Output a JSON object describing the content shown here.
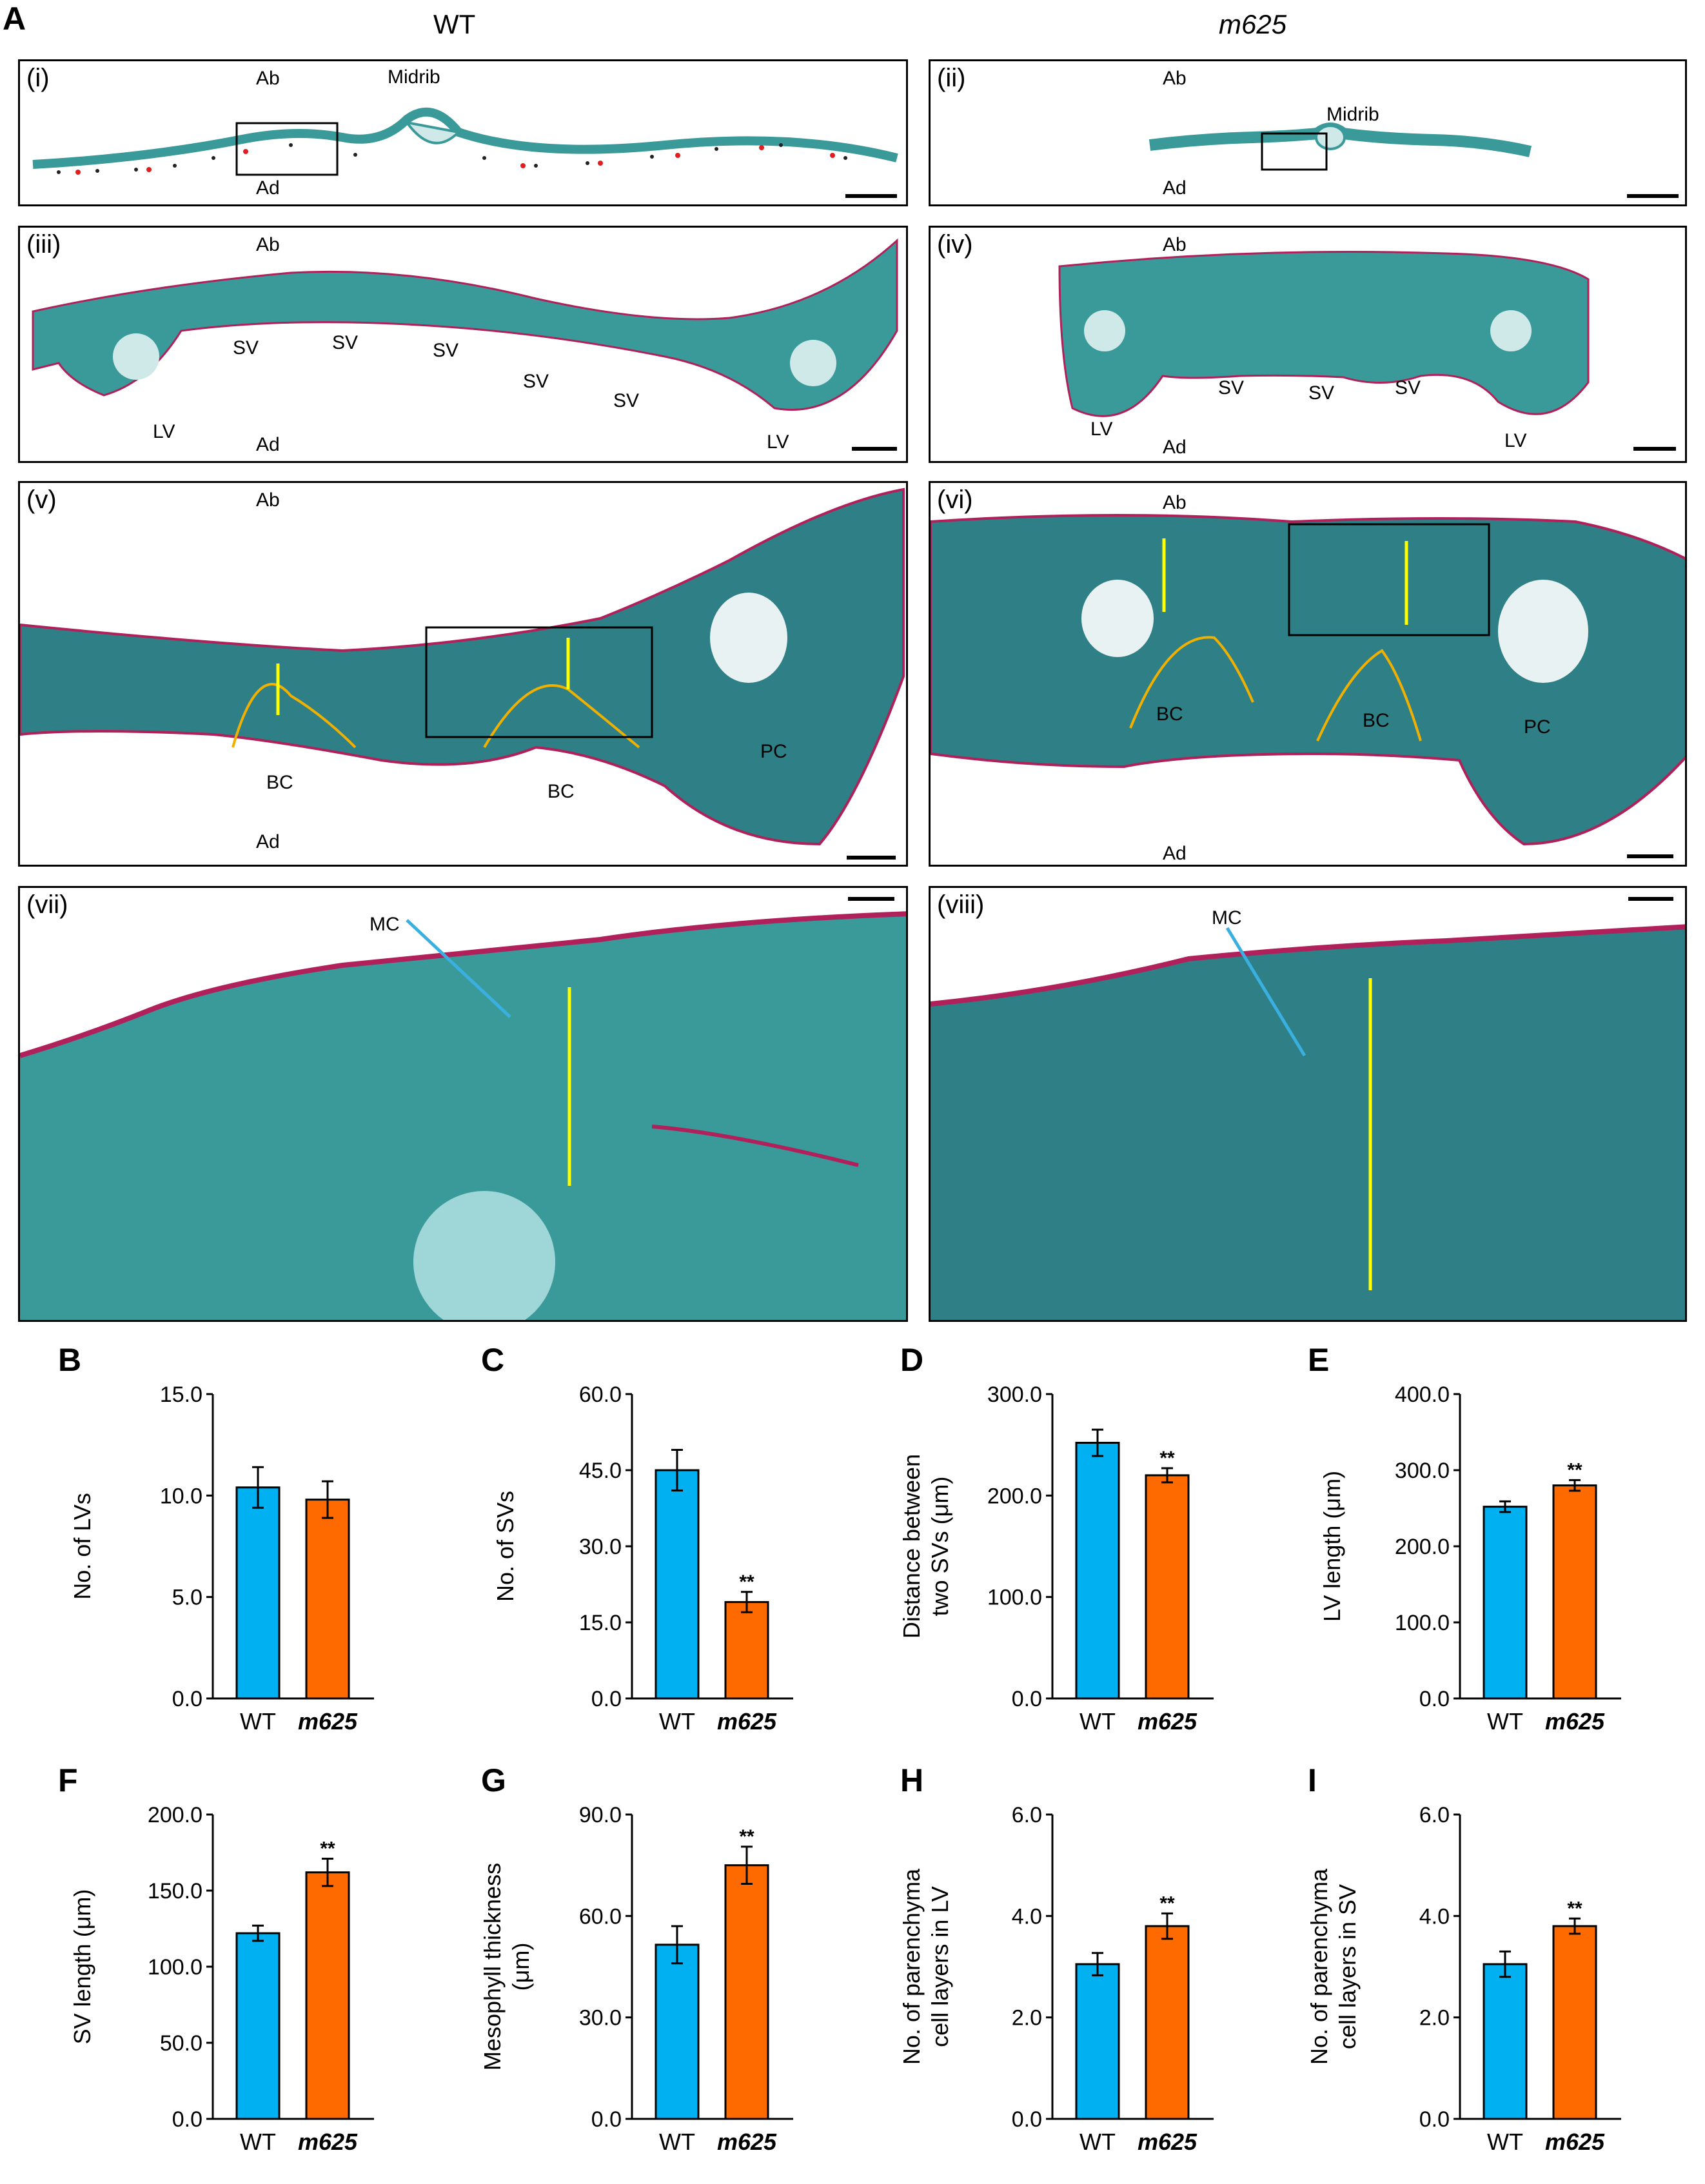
{
  "panel_A": {
    "letter": "A",
    "columns": {
      "left": "WT",
      "right": "m625"
    },
    "subpanels": [
      {
        "id": "i",
        "label": "(i)",
        "labels": [
          "Ab",
          "Midrib",
          "Ad"
        ]
      },
      {
        "id": "ii",
        "label": "(ii)",
        "labels": [
          "Ab",
          "Midrib",
          "Ad"
        ]
      },
      {
        "id": "iii",
        "label": "(iii)",
        "labels": [
          "Ab",
          "SV",
          "SV",
          "SV",
          "SV",
          "SV",
          "LV",
          "Ad",
          "LV"
        ]
      },
      {
        "id": "iv",
        "label": "(iv)",
        "labels": [
          "Ab",
          "SV",
          "SV",
          "SV",
          "LV",
          "Ad",
          "LV"
        ]
      },
      {
        "id": "v",
        "label": "(v)",
        "labels": [
          "Ab",
          "BC",
          "BC",
          "PC",
          "Ad"
        ]
      },
      {
        "id": "vi",
        "label": "(vi)",
        "labels": [
          "Ab",
          "BC",
          "BC",
          "PC",
          "Ad"
        ]
      },
      {
        "id": "vii",
        "label": "(vii)",
        "labels": [
          "MC"
        ]
      },
      {
        "id": "viii",
        "label": "(viii)",
        "labels": [
          "MC"
        ]
      }
    ],
    "colors": {
      "tissue": "#3a9a9a",
      "cell_dark": "#1e4a54",
      "cuticle": "#b0205a",
      "arrow": "#ffff00",
      "bundle_sheath": "#f0b000",
      "parenchyma": "#e02020",
      "mc_arrow": "#3ab0e0"
    }
  },
  "chart_data": [
    {
      "panel": "B",
      "type": "bar",
      "categories": [
        "WT",
        "m625"
      ],
      "values": [
        10.4,
        9.8
      ],
      "errors": [
        1.0,
        0.9
      ],
      "significance": [
        "",
        ""
      ],
      "ylabel": "No. of LVs",
      "ylim": [
        0,
        15
      ],
      "yticks": [
        "0.0",
        "5.0",
        "10.0",
        "15.0"
      ],
      "tick_values": [
        0,
        5,
        10,
        15
      ]
    },
    {
      "panel": "C",
      "type": "bar",
      "categories": [
        "WT",
        "m625"
      ],
      "values": [
        45.0,
        19.0
      ],
      "errors": [
        4.0,
        2.0
      ],
      "significance": [
        "",
        "**"
      ],
      "ylabel": "No. of SVs",
      "ylim": [
        0,
        60
      ],
      "yticks": [
        "0.0",
        "15.0",
        "30.0",
        "45.0",
        "60.0"
      ],
      "tick_values": [
        0,
        15,
        30,
        45,
        60
      ]
    },
    {
      "panel": "D",
      "type": "bar",
      "categories": [
        "WT",
        "m625"
      ],
      "values": [
        252,
        220
      ],
      "errors": [
        13,
        7
      ],
      "significance": [
        "",
        "**"
      ],
      "ylabel": "Distance between two SVs (μm)",
      "ylabel_lines": [
        "Distance between",
        "two SVs (μm)"
      ],
      "ylim": [
        0,
        300
      ],
      "yticks": [
        "0.0",
        "100.0",
        "200.0",
        "300.0"
      ],
      "tick_values": [
        0,
        100,
        200,
        300
      ]
    },
    {
      "panel": "E",
      "type": "bar",
      "categories": [
        "WT",
        "m625"
      ],
      "values": [
        252,
        280
      ],
      "errors": [
        7,
        7
      ],
      "significance": [
        "",
        "**"
      ],
      "ylabel": "LV length (μm)",
      "ylim": [
        0,
        400
      ],
      "yticks": [
        "0.0",
        "100.0",
        "200.0",
        "300.0",
        "400.0"
      ],
      "tick_values": [
        0,
        100,
        200,
        300,
        400
      ]
    },
    {
      "panel": "F",
      "type": "bar",
      "categories": [
        "WT",
        "m625"
      ],
      "values": [
        122,
        162
      ],
      "errors": [
        5,
        9
      ],
      "significance": [
        "",
        "**"
      ],
      "ylabel": "SV length (μm)",
      "ylim": [
        0,
        200
      ],
      "yticks": [
        "0.0",
        "50.0",
        "100.0",
        "150.0",
        "200.0"
      ],
      "tick_values": [
        0,
        50,
        100,
        150,
        200
      ]
    },
    {
      "panel": "G",
      "type": "bar",
      "categories": [
        "WT",
        "m625"
      ],
      "values": [
        51.5,
        75.0
      ],
      "errors": [
        5.5,
        5.5
      ],
      "significance": [
        "",
        "**"
      ],
      "ylabel": "Mesophyll thickness (μm)",
      "ylabel_lines": [
        "Mesophyll thickness",
        "(μm)"
      ],
      "ylim": [
        0,
        90
      ],
      "yticks": [
        "0.0",
        "30.0",
        "60.0",
        "90.0"
      ],
      "tick_values": [
        0,
        30,
        60,
        90
      ]
    },
    {
      "panel": "H",
      "type": "bar",
      "categories": [
        "WT",
        "m625"
      ],
      "values": [
        3.05,
        3.8
      ],
      "errors": [
        0.22,
        0.25
      ],
      "significance": [
        "",
        "**"
      ],
      "ylabel": "No. of parenchyma cell layers in LV",
      "ylabel_lines": [
        "No. of parenchyma",
        "cell layers in LV"
      ],
      "ylim": [
        0,
        6
      ],
      "yticks": [
        "0.0",
        "2.0",
        "4.0",
        "6.0"
      ],
      "tick_values": [
        0,
        2,
        4,
        6
      ]
    },
    {
      "panel": "I",
      "type": "bar",
      "categories": [
        "WT",
        "m625"
      ],
      "values": [
        3.05,
        3.8
      ],
      "errors": [
        0.25,
        0.15
      ],
      "significance": [
        "",
        "**"
      ],
      "ylabel": "No. of parenchyma cell layers in SV",
      "ylabel_lines": [
        "No. of parenchyma",
        "cell layers in SV"
      ],
      "ylim": [
        0,
        6
      ],
      "yticks": [
        "0.0",
        "2.0",
        "4.0",
        "6.0"
      ],
      "tick_values": [
        0,
        2,
        4,
        6
      ]
    }
  ],
  "bar_colors": {
    "WT": "#00b0f0",
    "m625": "#ff6a00"
  }
}
